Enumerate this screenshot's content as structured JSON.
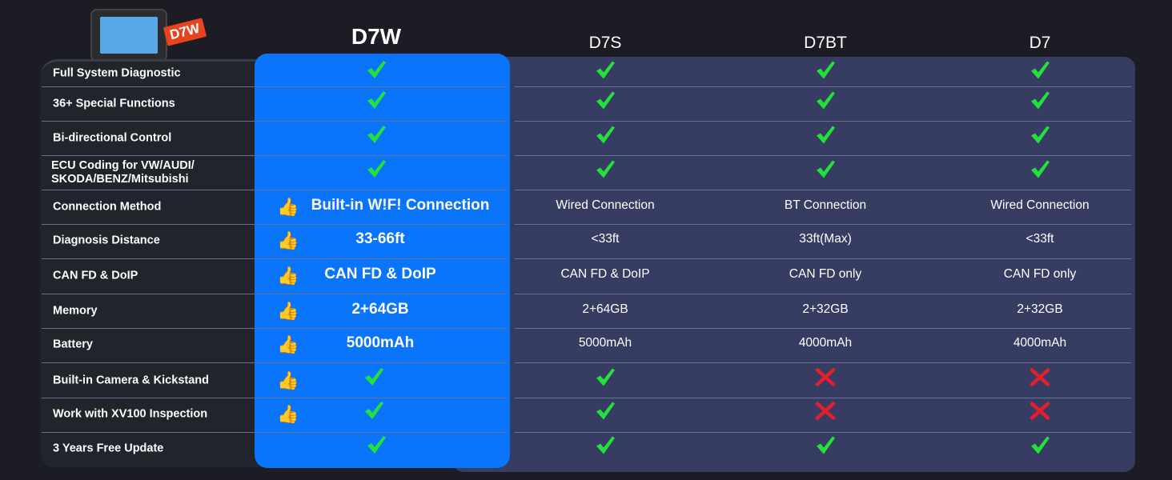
{
  "badge": "D7W",
  "colors": {
    "background": "#1b1c24",
    "highlight": "#0a74fb",
    "panel": "#373d62",
    "check": "#22e23a",
    "cross": "#e3202a"
  },
  "columns": [
    "D7W",
    "D7S",
    "D7BT",
    "D7"
  ],
  "rows": [
    {
      "label": "Full System Diagnostic",
      "cells": [
        {
          "t": "check"
        },
        {
          "t": "check"
        },
        {
          "t": "check"
        },
        {
          "t": "check"
        }
      ]
    },
    {
      "label": "36+ Special Functions",
      "cells": [
        {
          "t": "check"
        },
        {
          "t": "check"
        },
        {
          "t": "check"
        },
        {
          "t": "check"
        }
      ]
    },
    {
      "label": "Bi-directional Control",
      "cells": [
        {
          "t": "check"
        },
        {
          "t": "check"
        },
        {
          "t": "check"
        },
        {
          "t": "check"
        }
      ]
    },
    {
      "label": "ECU Coding for VW/AUDI/ SKODA/BENZ/Mitsubishi",
      "cells": [
        {
          "t": "check"
        },
        {
          "t": "check"
        },
        {
          "t": "check"
        },
        {
          "t": "check"
        }
      ]
    },
    {
      "label": "Connection Method",
      "thumb": true,
      "cells": [
        {
          "t": "text",
          "v": "Built-in W!F! Connection"
        },
        {
          "t": "text",
          "v": "Wired Connection"
        },
        {
          "t": "text",
          "v": "BT Connection"
        },
        {
          "t": "text",
          "v": "Wired Connection"
        }
      ]
    },
    {
      "label": "Diagnosis Distance",
      "thumb": true,
      "cells": [
        {
          "t": "text",
          "v": "33-66ft"
        },
        {
          "t": "text",
          "v": "<33ft"
        },
        {
          "t": "text",
          "v": "33ft(Max)"
        },
        {
          "t": "text",
          "v": "<33ft"
        }
      ]
    },
    {
      "label": "CAN FD & DoIP",
      "thumb": true,
      "cells": [
        {
          "t": "text",
          "v": "CAN FD & DoIP"
        },
        {
          "t": "text",
          "v": "CAN FD & DoIP"
        },
        {
          "t": "text",
          "v": "CAN FD only"
        },
        {
          "t": "text",
          "v": "CAN FD only"
        }
      ]
    },
    {
      "label": "Memory",
      "thumb": true,
      "cells": [
        {
          "t": "text",
          "v": "2+64GB"
        },
        {
          "t": "text",
          "v": "2+64GB"
        },
        {
          "t": "text",
          "v": "2+32GB"
        },
        {
          "t": "text",
          "v": "2+32GB"
        }
      ]
    },
    {
      "label": "Battery",
      "thumb": true,
      "cells": [
        {
          "t": "text",
          "v": "5000mAh"
        },
        {
          "t": "text",
          "v": "5000mAh"
        },
        {
          "t": "text",
          "v": "4000mAh"
        },
        {
          "t": "text",
          "v": "4000mAh"
        }
      ]
    },
    {
      "label": "Built-in Camera & Kickstand",
      "thumb": true,
      "cells": [
        {
          "t": "check"
        },
        {
          "t": "check"
        },
        {
          "t": "cross"
        },
        {
          "t": "cross"
        }
      ]
    },
    {
      "label": "Work with XV100 Inspection",
      "thumb": true,
      "cells": [
        {
          "t": "check"
        },
        {
          "t": "check"
        },
        {
          "t": "cross"
        },
        {
          "t": "cross"
        }
      ]
    },
    {
      "label": "3 Years Free Update",
      "cells": [
        {
          "t": "check"
        },
        {
          "t": "check"
        },
        {
          "t": "check"
        },
        {
          "t": "check"
        }
      ]
    }
  ]
}
